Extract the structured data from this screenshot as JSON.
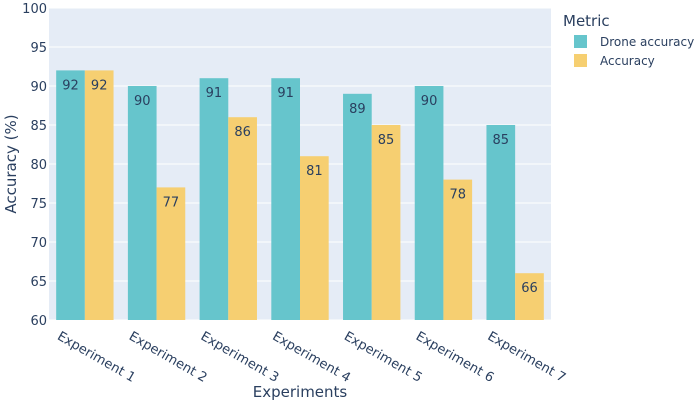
{
  "chart_data": {
    "type": "bar",
    "categories": [
      "Experiment 1",
      "Experiment 2",
      "Experiment 3",
      "Experiment 4",
      "Experiment 5",
      "Experiment 6",
      "Experiment 7"
    ],
    "series": [
      {
        "name": "Drone accuracy",
        "values": [
          92,
          90,
          91,
          91,
          89,
          90,
          85
        ],
        "color": "#66c5cc"
      },
      {
        "name": "Accuracy",
        "values": [
          92,
          77,
          86,
          81,
          85,
          78,
          66
        ],
        "color": "#f6cf71"
      }
    ],
    "xlabel": "Experiments",
    "ylabel": "Accuracy (%)",
    "ylim": [
      60,
      100
    ],
    "yticks": [
      60,
      65,
      70,
      75,
      80,
      85,
      90,
      95,
      100
    ],
    "legend_title": "Metric",
    "legend_position": "top-right",
    "grid": true,
    "plot_background": "#e5ecf6",
    "bar_labels": true
  }
}
